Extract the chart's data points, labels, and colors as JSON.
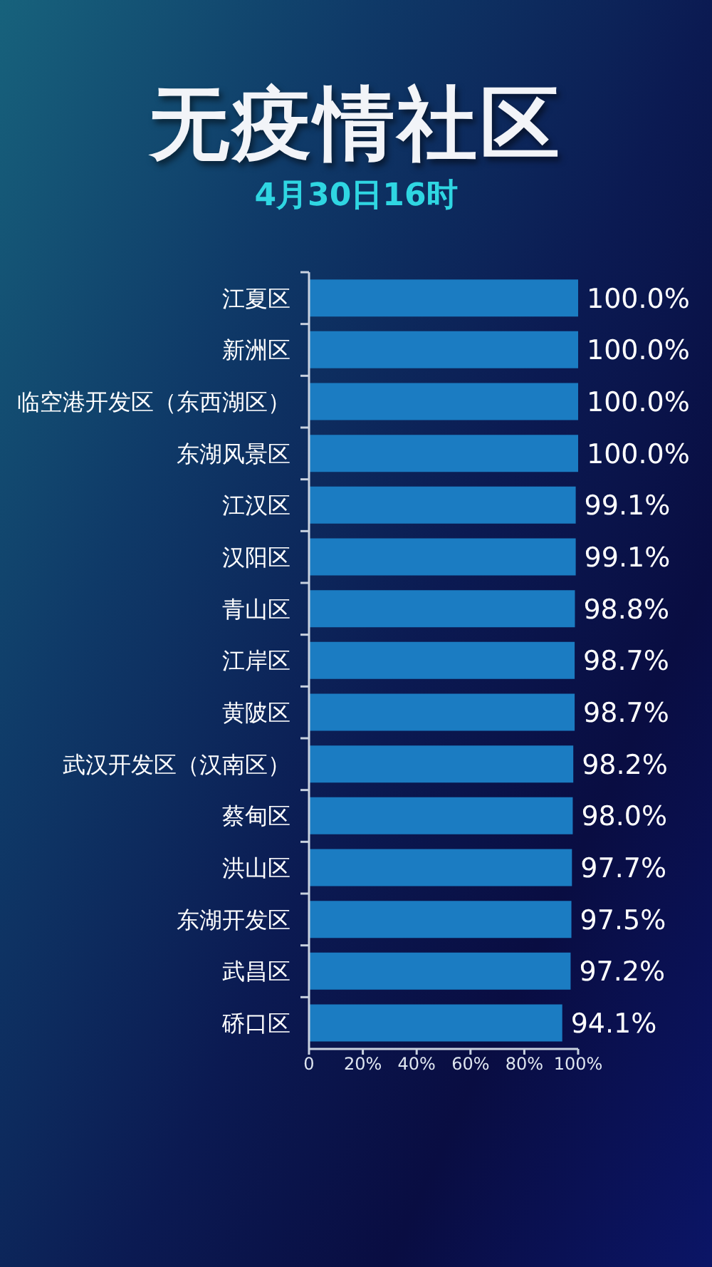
{
  "chart_data": {
    "type": "bar",
    "orientation": "horizontal",
    "title": "无疫情社区",
    "subtitle": "4月30日16时",
    "categories": [
      "江夏区",
      "新洲区",
      "临空港开发区（东西湖区）",
      "东湖风景区",
      "江汉区",
      "汉阳区",
      "青山区",
      "江岸区",
      "黄陂区",
      "武汉开发区（汉南区）",
      "蔡甸区",
      "洪山区",
      "东湖开发区",
      "武昌区",
      "硚口区"
    ],
    "values": [
      100,
      100,
      100,
      100,
      99.1,
      99.1,
      98.8,
      98.7,
      98.7,
      98.2,
      98.0,
      97.7,
      97.5,
      97.2,
      94.1
    ],
    "value_labels": [
      "100.0%",
      "100.0%",
      "100.0%",
      "100.0%",
      "99.1%",
      "99.1%",
      "98.8%",
      "98.7%",
      "98.7%",
      "98.2%",
      "98.0%",
      "97.7%",
      "97.5%",
      "97.2%",
      "94.1%"
    ],
    "color": "#1b7cc2",
    "xlim": [
      0,
      100
    ],
    "xticks": [
      0,
      {
        "value": 20,
        "label": "20%"
      },
      {
        "value": 40,
        "label": "40%"
      },
      {
        "value": 60,
        "label": "60%"
      },
      {
        "value": 80,
        "label": "80%"
      },
      {
        "value": 100,
        "label": "100%"
      }
    ]
  }
}
